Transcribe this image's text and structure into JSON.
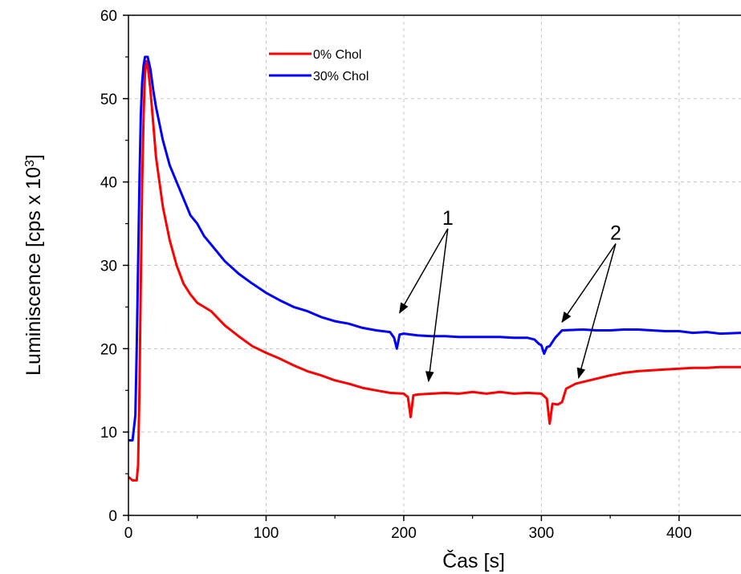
{
  "chart_data": {
    "type": "line",
    "title": "",
    "xlabel": "Čas [s]",
    "ylabel_parts": [
      "Luminiscence [cps x 10",
      "3",
      "]"
    ],
    "xlim": [
      0,
      445
    ],
    "ylim": [
      0,
      60
    ],
    "xticks": [
      0,
      100,
      200,
      300,
      400
    ],
    "yticks": [
      0,
      10,
      20,
      30,
      40,
      50,
      60
    ],
    "grid": true,
    "legend": {
      "position": "top-left-inner"
    },
    "series": [
      {
        "name": "0% Chol",
        "color": "#ff0000",
        "points": [
          [
            0,
            4.6
          ],
          [
            3,
            4.2
          ],
          [
            6,
            4.2
          ],
          [
            7,
            6
          ],
          [
            8,
            15
          ],
          [
            9,
            28
          ],
          [
            10,
            40
          ],
          [
            11,
            48
          ],
          [
            12,
            53
          ],
          [
            13,
            54.5
          ],
          [
            14,
            54
          ],
          [
            16,
            51
          ],
          [
            18,
            47
          ],
          [
            20,
            43
          ],
          [
            25,
            37
          ],
          [
            30,
            33
          ],
          [
            35,
            30
          ],
          [
            40,
            27.8
          ],
          [
            45,
            26.5
          ],
          [
            50,
            25.5
          ],
          [
            55,
            25
          ],
          [
            60,
            24.5
          ],
          [
            70,
            22.8
          ],
          [
            80,
            21.5
          ],
          [
            90,
            20.3
          ],
          [
            100,
            19.5
          ],
          [
            110,
            18.8
          ],
          [
            120,
            18
          ],
          [
            130,
            17.3
          ],
          [
            140,
            16.8
          ],
          [
            150,
            16.2
          ],
          [
            160,
            15.8
          ],
          [
            170,
            15.3
          ],
          [
            180,
            15
          ],
          [
            190,
            14.7
          ],
          [
            200,
            14.6
          ],
          [
            203,
            14.2
          ],
          [
            205,
            11.8
          ],
          [
            207,
            14.4
          ],
          [
            210,
            14.5
          ],
          [
            220,
            14.6
          ],
          [
            230,
            14.7
          ],
          [
            240,
            14.6
          ],
          [
            250,
            14.8
          ],
          [
            260,
            14.6
          ],
          [
            270,
            14.8
          ],
          [
            280,
            14.6
          ],
          [
            290,
            14.7
          ],
          [
            300,
            14.6
          ],
          [
            304,
            14
          ],
          [
            306,
            11
          ],
          [
            308,
            13.4
          ],
          [
            312,
            13.3
          ],
          [
            315,
            13.6
          ],
          [
            318,
            15.2
          ],
          [
            325,
            15.8
          ],
          [
            340,
            16.4
          ],
          [
            350,
            16.8
          ],
          [
            360,
            17.1
          ],
          [
            370,
            17.3
          ],
          [
            380,
            17.4
          ],
          [
            390,
            17.5
          ],
          [
            400,
            17.6
          ],
          [
            410,
            17.7
          ],
          [
            420,
            17.7
          ],
          [
            430,
            17.8
          ],
          [
            445,
            17.8
          ]
        ]
      },
      {
        "name": "30% Chol",
        "color": "#0000ff",
        "points": [
          [
            0,
            9
          ],
          [
            3,
            9
          ],
          [
            5,
            12
          ],
          [
            6,
            20
          ],
          [
            7,
            30
          ],
          [
            8,
            40
          ],
          [
            9,
            48
          ],
          [
            10,
            52
          ],
          [
            11,
            54
          ],
          [
            12,
            55
          ],
          [
            14,
            55
          ],
          [
            16,
            53.5
          ],
          [
            18,
            51
          ],
          [
            20,
            49
          ],
          [
            25,
            45
          ],
          [
            30,
            42
          ],
          [
            35,
            40
          ],
          [
            40,
            38
          ],
          [
            45,
            36
          ],
          [
            50,
            35
          ],
          [
            55,
            33.5
          ],
          [
            60,
            32.5
          ],
          [
            70,
            30.5
          ],
          [
            80,
            29
          ],
          [
            90,
            27.8
          ],
          [
            100,
            26.7
          ],
          [
            110,
            25.8
          ],
          [
            120,
            25
          ],
          [
            130,
            24.5
          ],
          [
            140,
            23.8
          ],
          [
            150,
            23.3
          ],
          [
            160,
            23
          ],
          [
            170,
            22.5
          ],
          [
            180,
            22.2
          ],
          [
            190,
            22
          ],
          [
            193,
            21.3
          ],
          [
            195,
            20
          ],
          [
            197,
            21.7
          ],
          [
            200,
            21.8
          ],
          [
            210,
            21.6
          ],
          [
            220,
            21.5
          ],
          [
            230,
            21.5
          ],
          [
            240,
            21.4
          ],
          [
            250,
            21.4
          ],
          [
            260,
            21.4
          ],
          [
            270,
            21.4
          ],
          [
            280,
            21.3
          ],
          [
            290,
            21.3
          ],
          [
            295,
            21.1
          ],
          [
            298,
            20.6
          ],
          [
            300,
            20.4
          ],
          [
            302,
            19.4
          ],
          [
            304,
            20.2
          ],
          [
            306,
            20.3
          ],
          [
            310,
            21.3
          ],
          [
            315,
            22.2
          ],
          [
            330,
            22.3
          ],
          [
            340,
            22.2
          ],
          [
            350,
            22.2
          ],
          [
            360,
            22.3
          ],
          [
            370,
            22.3
          ],
          [
            380,
            22.2
          ],
          [
            390,
            22.1
          ],
          [
            400,
            22.1
          ],
          [
            410,
            21.9
          ],
          [
            420,
            22
          ],
          [
            430,
            21.8
          ],
          [
            445,
            21.9
          ]
        ]
      }
    ],
    "annotations": [
      {
        "text": "1",
        "anchor": [
          232,
          34.4
        ],
        "arrows_to": [
          [
            197,
            24.3
          ],
          [
            218,
            16.1
          ]
        ]
      },
      {
        "text": "2",
        "anchor": [
          354,
          32.6
        ],
        "arrows_to": [
          [
            315,
            23.2
          ],
          [
            327,
            16.5
          ]
        ]
      }
    ]
  }
}
